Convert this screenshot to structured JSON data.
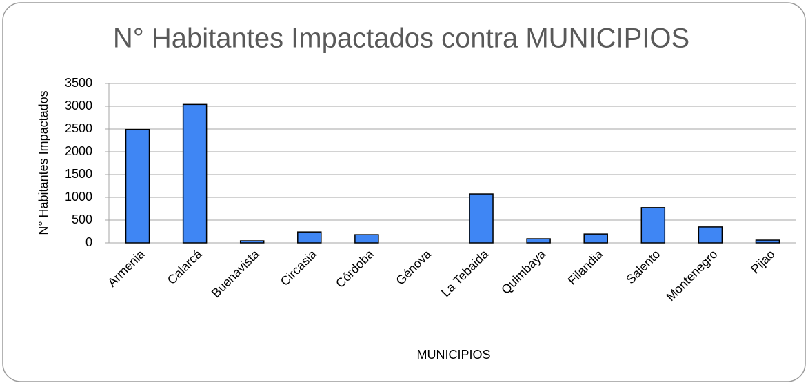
{
  "chart_data": {
    "type": "bar",
    "title": "N° Habitantes Impactados contra MUNICIPIOS",
    "x_label": "MUNICIPIOS",
    "y_label": "N° Habitantes Impactados",
    "categories": [
      "Armenia",
      "Calarcá",
      "Buenavista",
      "Circasia",
      "Córdoba",
      "Génova",
      "La Tebaida",
      "Quimbaya",
      "Filandia",
      "Salento",
      "Montenegro",
      "Pijao"
    ],
    "values": [
      2490,
      3040,
      45,
      240,
      180,
      0,
      1075,
      90,
      195,
      775,
      350,
      60
    ],
    "color": "#3f86f4",
    "ylim": [
      0,
      3500
    ],
    "yticks": [
      0,
      500,
      1000,
      1500,
      2000,
      2500,
      3000,
      3500
    ],
    "grid": true
  }
}
